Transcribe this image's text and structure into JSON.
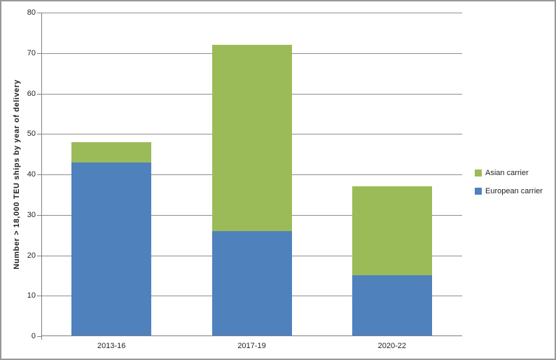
{
  "chart_data": {
    "type": "bar",
    "stacked": true,
    "title": "",
    "categories": [
      "2013-16",
      "2017-19",
      "2020-22"
    ],
    "series": [
      {
        "name": "European carrier",
        "color": "#4f81bd",
        "values": [
          43,
          26,
          15
        ]
      },
      {
        "name": "Asian carrier",
        "color": "#9bbb59",
        "values": [
          5,
          46,
          22
        ]
      }
    ],
    "stack_totals": [
      48,
      72,
      37
    ],
    "xlabel": "",
    "ylabel": "Number > 18,000 TEU ships by year of delivery",
    "ylim": [
      0,
      80
    ],
    "ytick_step": 10,
    "yticks": [
      0,
      10,
      20,
      30,
      40,
      50,
      60,
      70,
      80
    ],
    "grid": true,
    "legend_position": "right",
    "legend": [
      {
        "label": "Asian carrier",
        "color": "#9bbb59"
      },
      {
        "label": "European carrier",
        "color": "#4f81bd"
      }
    ]
  },
  "colors": {
    "asian_green": "#9bbb59",
    "european_blue": "#4f81bd",
    "gridline": "#8e8e8e",
    "axis": "#7f7f7f",
    "chart_border": "#979797",
    "text": "#1f1f1f"
  }
}
